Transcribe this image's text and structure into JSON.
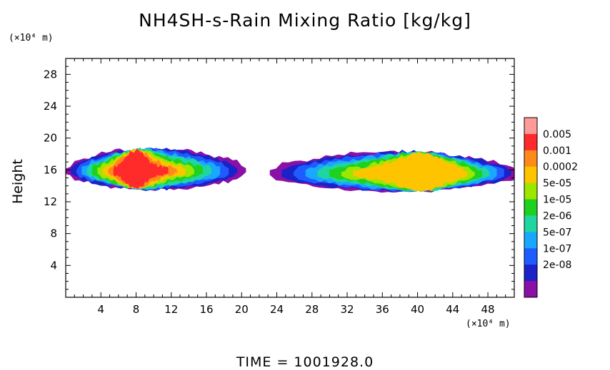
{
  "chart_data": {
    "type": "heatmap",
    "title": "NH4SH-s-Rain Mixing Ratio [kg/kg]",
    "xlabel": "",
    "ylabel": "Height",
    "x_unit": "(×10⁴ m)",
    "y_unit": "(×10⁴ m)",
    "xlim": [
      0,
      51
    ],
    "ylim": [
      0,
      30
    ],
    "x_ticks": [
      4,
      8,
      12,
      16,
      20,
      24,
      28,
      32,
      36,
      40,
      44,
      48
    ],
    "y_ticks": [
      4,
      8,
      12,
      16,
      20,
      24,
      28
    ],
    "grid": false,
    "footer": "TIME = 1001928.0",
    "colorbar": {
      "labels": [
        "0.005",
        "0.001",
        "0.0002",
        "5e-05",
        "1e-05",
        "2e-06",
        "5e-07",
        "1e-07",
        "2e-08"
      ],
      "colors": [
        "#ff9a9a",
        "#ff2a2a",
        "#ff8a1a",
        "#ffc400",
        "#9ce600",
        "#1fd11f",
        "#1fd6a0",
        "#1aa8ff",
        "#1f5cff",
        "#1a22c8",
        "#8a10a8"
      ]
    },
    "regions": [
      {
        "name": "left-cloud",
        "x_range": [
          0,
          20.5
        ],
        "y_range": [
          13.3,
          19.2
        ],
        "max_level": "1e-03"
      },
      {
        "name": "right-cloud",
        "x_range": [
          23,
          51
        ],
        "y_range": [
          13.0,
          19.0
        ],
        "max_level": "2e-04"
      }
    ]
  },
  "labels": {
    "title": "NH4SH-s-Rain Mixing Ratio [kg/kg]",
    "y_unit": "(×10⁴ m)",
    "x_unit": "(×10⁴ m)",
    "y_title": "Height",
    "time": "TIME = 1001928.0"
  }
}
